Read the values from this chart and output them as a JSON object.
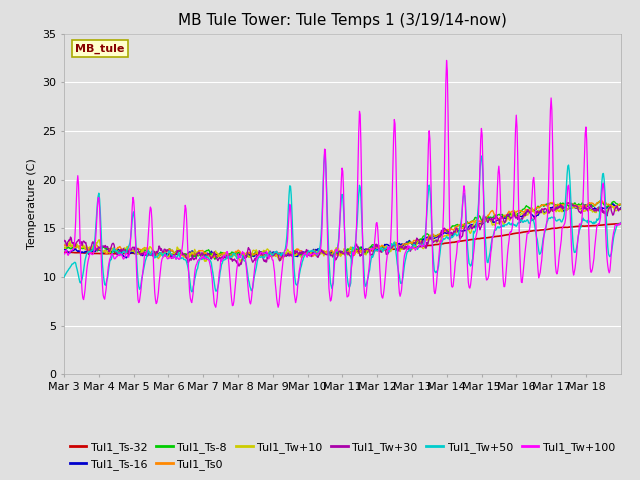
{
  "title": "MB Tule Tower: Tule Temps 1 (3/19/14-now)",
  "ylabel": "Temperature (C)",
  "ylim": [
    0,
    35
  ],
  "yticks": [
    0,
    5,
    10,
    15,
    20,
    25,
    30,
    35
  ],
  "bg_color": "#e0e0e0",
  "grid_color": "#ffffff",
  "watermark": "MB_tule",
  "series": [
    {
      "label": "Tul1_Ts-32",
      "color": "#cc0000"
    },
    {
      "label": "Tul1_Ts-16",
      "color": "#0000cc"
    },
    {
      "label": "Tul1_Ts-8",
      "color": "#00cc00"
    },
    {
      "label": "Tul1_Ts0",
      "color": "#ff8800"
    },
    {
      "label": "Tul1_Tw+10",
      "color": "#cccc00"
    },
    {
      "label": "Tul1_Tw+30",
      "color": "#aa00aa"
    },
    {
      "label": "Tul1_Tw+50",
      "color": "#00cccc"
    },
    {
      "label": "Tul1_Tw+100",
      "color": "#ff00ff"
    }
  ],
  "x_tick_labels": [
    "Mar 3",
    "Mar 4",
    "Mar 5",
    "Mar 6",
    "Mar 7",
    "Mar 8",
    "Mar 9",
    "Mar 10",
    "Mar 11",
    "Mar 12",
    "Mar 13",
    "Mar 14",
    "Mar 15",
    "Mar 16",
    "Mar 17",
    "Mar 18"
  ],
  "n_days": 16,
  "title_fontsize": 11,
  "axis_fontsize": 8,
  "legend_fontsize": 8,
  "pts_per_day": 48,
  "spike_times_tw100": [
    0.4,
    1.0,
    2.0,
    2.5,
    3.5,
    4.2,
    4.7,
    5.2,
    6.0,
    6.5,
    7.5,
    8.0,
    8.5,
    9.0,
    9.5,
    10.5,
    11.0,
    11.5,
    12.0,
    12.5,
    13.0,
    13.5,
    14.0,
    14.5,
    15.0,
    15.5
  ],
  "spike_peaks_tw100": [
    21,
    19,
    19,
    18,
    18,
    5,
    13,
    13,
    5,
    18,
    24,
    22,
    28,
    16,
    27,
    26,
    33,
    20,
    26,
    22,
    27,
    21,
    29,
    20,
    26,
    20
  ],
  "spike_times_tw50": [
    0.3,
    1.0,
    2.0,
    3.5,
    4.2,
    5.2,
    6.5,
    7.5,
    8.0,
    8.5,
    9.5,
    10.5,
    11.5,
    12.0,
    13.5,
    14.5,
    15.5
  ],
  "spike_peaks_tw50": [
    10,
    19,
    17,
    12,
    7,
    12,
    20,
    23,
    19,
    20,
    14,
    20,
    19,
    23,
    16,
    22,
    21
  ]
}
